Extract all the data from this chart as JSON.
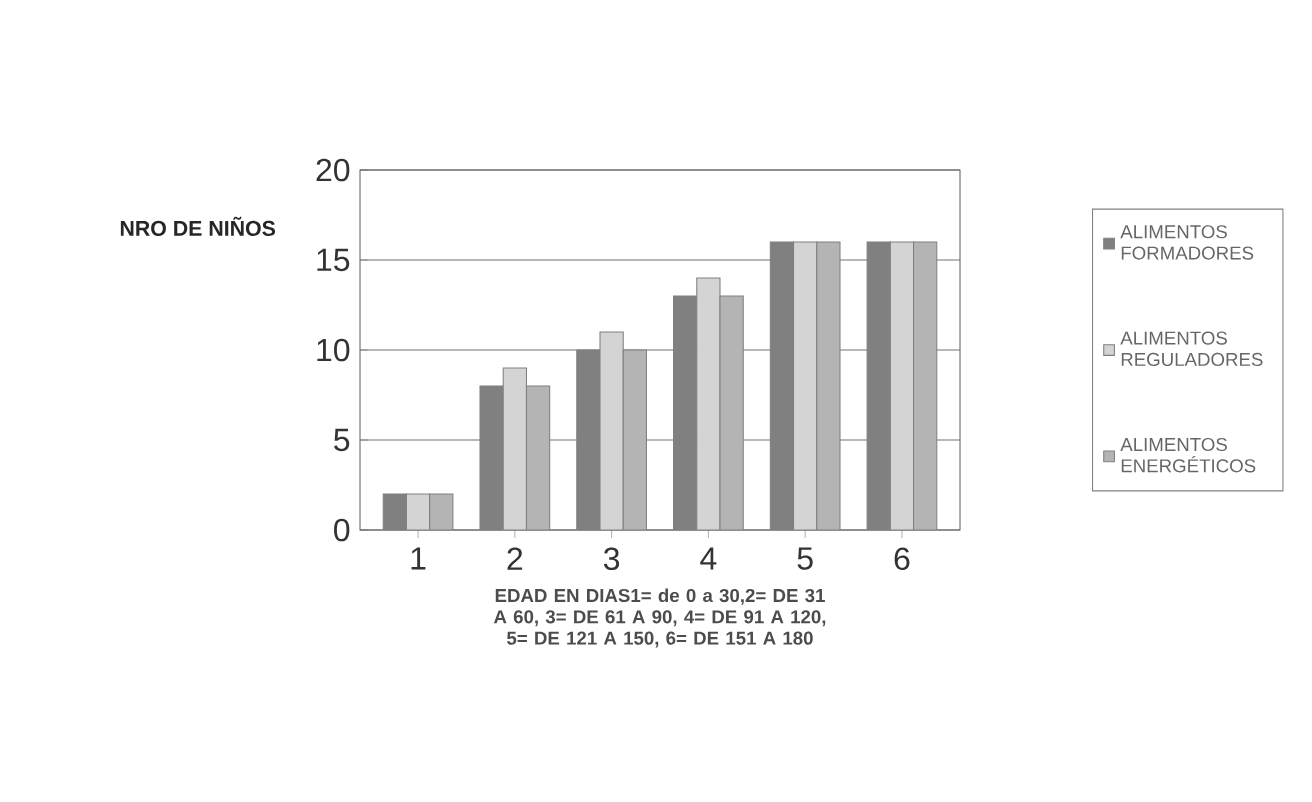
{
  "chart_data": {
    "type": "bar",
    "ylabel": "NRO DE NIÑOS",
    "xlabel": "EDAD EN DIAS1= de 0 a 30,2= DE 31 A 60, 3= DE 61 A 90, 4= DE 91 A 120, 5= DE 121 A 150, 6= DE 151 A 180",
    "categories": [
      "1",
      "2",
      "3",
      "4",
      "5",
      "6"
    ],
    "series": [
      {
        "name": "ALIMENTOS FORMADORES",
        "color": "#808080",
        "values": [
          2,
          8,
          10,
          13,
          16,
          16
        ]
      },
      {
        "name": "ALIMENTOS REGULADORES",
        "color": "#d4d4d4",
        "values": [
          2,
          9,
          11,
          14,
          16,
          16
        ]
      },
      {
        "name": "ALIMENTOS ENERGÉTICOS",
        "color": "#b4b4b4",
        "values": [
          2,
          8,
          10,
          13,
          16,
          16
        ]
      }
    ],
    "ylim": [
      0,
      20
    ],
    "yticks": [
      0,
      5,
      10,
      15,
      20
    ],
    "grid": "y",
    "legend": "right"
  }
}
